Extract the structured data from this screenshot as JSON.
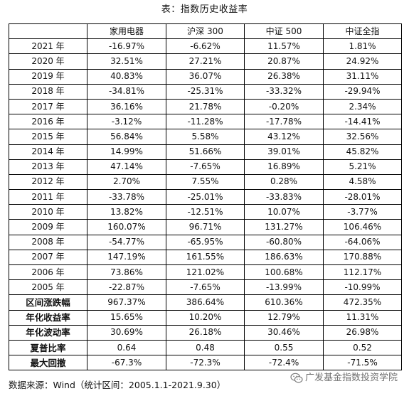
{
  "caption": "表：指数历史收益率",
  "columns": [
    "",
    "家用电器",
    "沪深 300",
    "中证 500",
    "中证全指"
  ],
  "year_rows": [
    {
      "label": "2021 年",
      "values": [
        "-16.97%",
        "-6.62%",
        "11.57%",
        "1.81%"
      ]
    },
    {
      "label": "2020 年",
      "values": [
        "32.51%",
        "27.21%",
        "20.87%",
        "24.92%"
      ]
    },
    {
      "label": "2019 年",
      "values": [
        "40.83%",
        "36.07%",
        "26.38%",
        "31.11%"
      ]
    },
    {
      "label": "2018 年",
      "values": [
        "-34.81%",
        "-25.31%",
        "-33.32%",
        "-29.94%"
      ]
    },
    {
      "label": "2017 年",
      "values": [
        "36.16%",
        "21.78%",
        "-0.20%",
        "2.34%"
      ]
    },
    {
      "label": "2016 年",
      "values": [
        "-3.12%",
        "-11.28%",
        "-17.78%",
        "-14.41%"
      ]
    },
    {
      "label": "2015 年",
      "values": [
        "56.84%",
        "5.58%",
        "43.12%",
        "32.56%"
      ]
    },
    {
      "label": "2014 年",
      "values": [
        "14.99%",
        "51.66%",
        "39.01%",
        "45.82%"
      ]
    },
    {
      "label": "2013 年",
      "values": [
        "47.14%",
        "-7.65%",
        "16.89%",
        "5.21%"
      ]
    },
    {
      "label": "2012 年",
      "values": [
        "2.70%",
        "7.55%",
        "0.28%",
        "4.58%"
      ]
    },
    {
      "label": "2011 年",
      "values": [
        "-33.78%",
        "-25.01%",
        "-33.83%",
        "-28.01%"
      ]
    },
    {
      "label": "2010 年",
      "values": [
        "13.82%",
        "-12.51%",
        "10.07%",
        "-3.77%"
      ]
    },
    {
      "label": "2009 年",
      "values": [
        "160.07%",
        "96.71%",
        "131.27%",
        "106.46%"
      ]
    },
    {
      "label": "2008 年",
      "values": [
        "-54.77%",
        "-65.95%",
        "-60.80%",
        "-64.06%"
      ]
    },
    {
      "label": "2007 年",
      "values": [
        "147.19%",
        "161.55%",
        "186.63%",
        "170.88%"
      ]
    },
    {
      "label": "2006 年",
      "values": [
        "73.86%",
        "121.02%",
        "100.68%",
        "112.17%"
      ]
    },
    {
      "label": "2005 年",
      "values": [
        "-22.87%",
        "-7.65%",
        "-13.99%",
        "-10.99%"
      ]
    }
  ],
  "summary_rows": [
    {
      "label": "区间涨跌幅",
      "values": [
        "967.37%",
        "386.64%",
        "610.36%",
        "472.35%"
      ]
    },
    {
      "label": "年化收益率",
      "values": [
        "15.65%",
        "10.20%",
        "12.79%",
        "11.31%"
      ]
    },
    {
      "label": "年化波动率",
      "values": [
        "30.69%",
        "26.18%",
        "30.46%",
        "26.98%"
      ]
    },
    {
      "label": "夏普比率",
      "values": [
        "0.64",
        "0.48",
        "0.55",
        "0.52"
      ]
    },
    {
      "label": "最大回撤",
      "values": [
        "-67.3%",
        "-72.3%",
        "-72.4%",
        "-71.5%"
      ]
    }
  ],
  "source_note": "数据来源：Wind（统计区间：2005.1.1-2021.9.30）",
  "watermark": {
    "text": "广发基金指数投资学院",
    "icon": "wechat-icon",
    "color": "#555555"
  }
}
